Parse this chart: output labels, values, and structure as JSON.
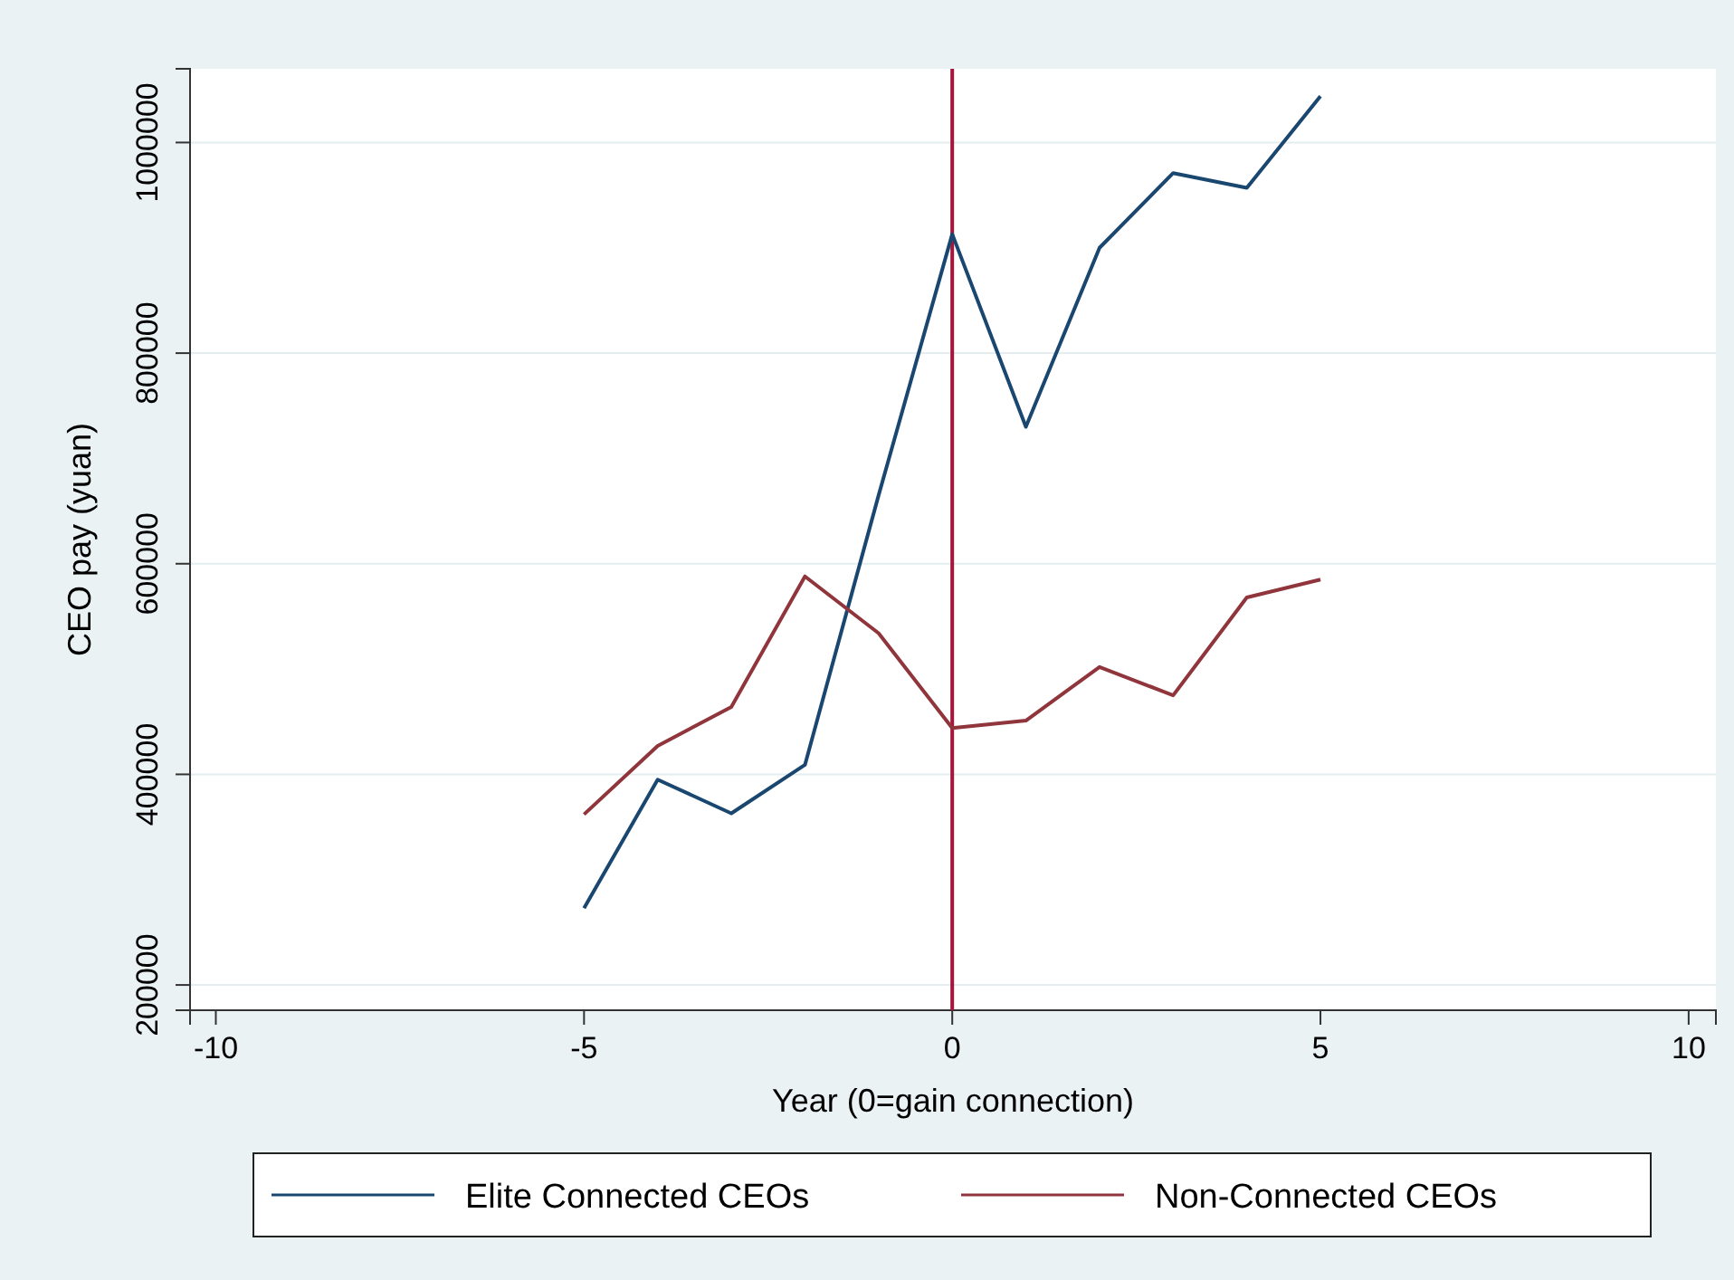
{
  "chart_data": {
    "type": "line",
    "xlabel": "Year (0=gain connection)",
    "ylabel": "CEO pay (yuan)",
    "x": [
      -5,
      -4,
      -3,
      -2,
      -1,
      0,
      1,
      2,
      3,
      4,
      5
    ],
    "series": [
      {
        "name": "Elite Connected CEOs",
        "color": "#1a476f",
        "values": [
          273000,
          395000,
          363000,
          409000,
          665000,
          913000,
          730000,
          900000,
          971000,
          957000,
          1044000
        ]
      },
      {
        "name": "Non-Connected CEOs",
        "color": "#90353b",
        "values": [
          362000,
          427000,
          464000,
          588000,
          534000,
          444000,
          451000,
          502000,
          475000,
          568000,
          585000
        ]
      }
    ],
    "xlim": [
      -10.35,
      10.37
    ],
    "xticks": [
      -10,
      -5,
      0,
      5,
      10
    ],
    "ylim": [
      176000,
      1070000
    ],
    "yticks": [
      200000,
      400000,
      600000,
      800000,
      1000000
    ],
    "ref_lines": [
      {
        "axis": "x",
        "value": 0,
        "color": "#a3173c"
      }
    ],
    "grid": "y",
    "legend": "bottom",
    "line_style": "solid",
    "marker": "none"
  }
}
